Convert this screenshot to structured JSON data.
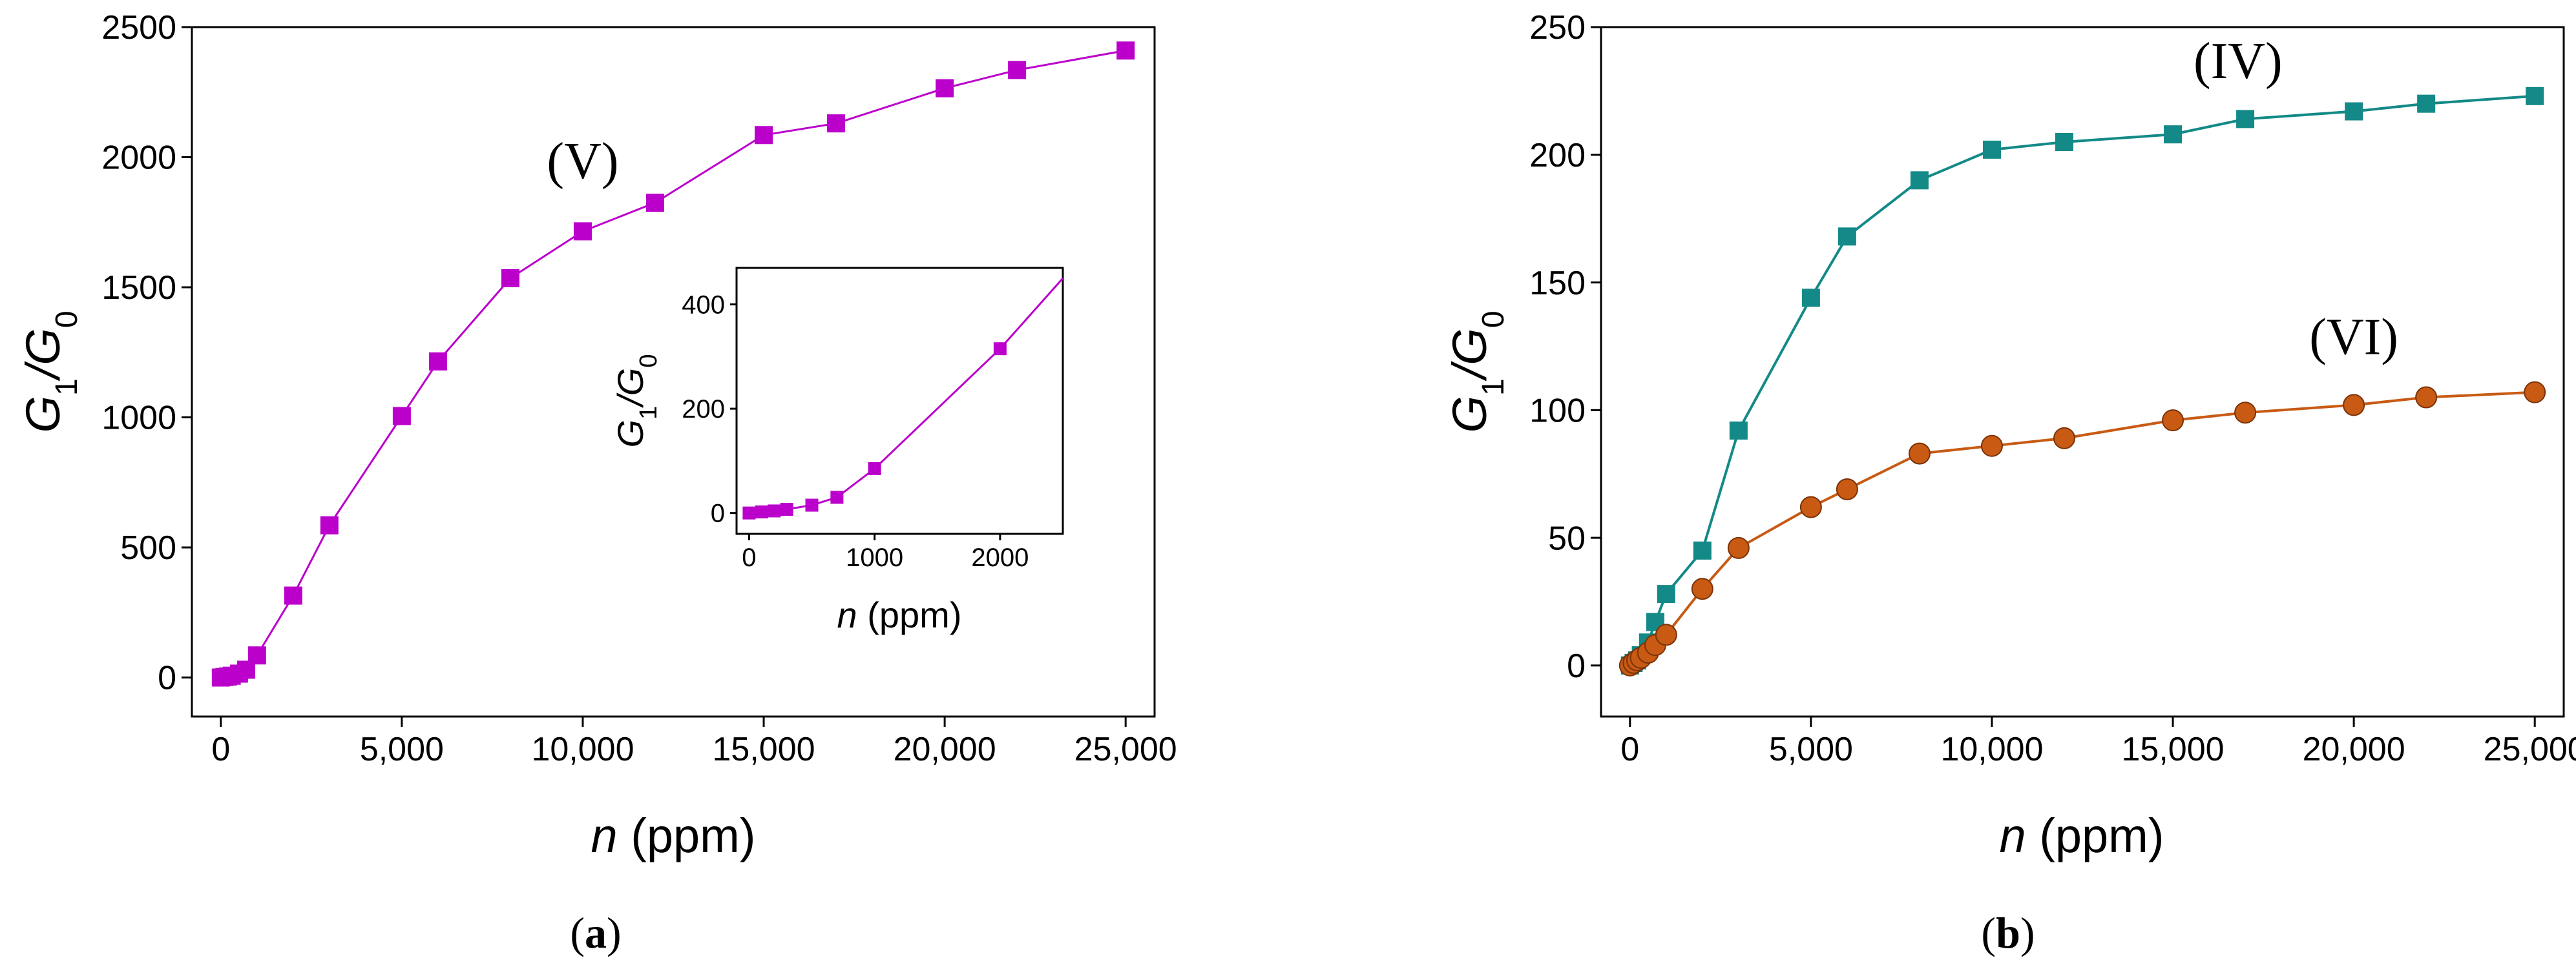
{
  "chart_data": [
    {
      "panel": "a",
      "type": "line",
      "caption_open": "(",
      "caption_letter": "a",
      "caption_close": ")",
      "xlabel_var": "n",
      "xlabel_unit": " (ppm)",
      "ylabel_main": "G",
      "ylabel_sub1": "1",
      "ylabel_slash": "/G",
      "ylabel_sub0": "0",
      "xlim": [
        -800,
        25800
      ],
      "ylim": [
        -150,
        2500
      ],
      "xticks": [
        0,
        5000,
        10000,
        15000,
        20000,
        25000
      ],
      "xtick_labels": [
        "0",
        "5,000",
        "10,000",
        "15,000",
        "20,000",
        "25,000"
      ],
      "yticks": [
        0,
        500,
        1000,
        1500,
        2000,
        2500
      ],
      "ytick_labels": [
        "0",
        "500",
        "1000",
        "1500",
        "2000",
        "2500"
      ],
      "series": [
        {
          "name": "(V)",
          "color": "#bb00cc",
          "marker": "square",
          "x": [
            0,
            100,
            200,
            300,
            500,
            700,
            1000,
            2000,
            3000,
            5000,
            6000,
            8000,
            10000,
            12000,
            15000,
            17000,
            20000,
            22000,
            25000
          ],
          "y": [
            0,
            2,
            4,
            7,
            15,
            30,
            85,
            315,
            585,
            1005,
            1215,
            1535,
            1715,
            1825,
            2085,
            2130,
            2265,
            2335,
            2410
          ]
        }
      ],
      "annotations": [
        {
          "text": "(V)",
          "x": 10000,
          "y": 1920
        }
      ],
      "inset": {
        "xlabel_var": "n",
        "xlabel_unit": " (ppm)",
        "ylabel_main": "G",
        "ylabel_sub1": "1",
        "ylabel_slash": "/G",
        "ylabel_sub0": "0",
        "xlim": [
          -100,
          2500
        ],
        "ylim": [
          -40,
          470
        ],
        "xticks": [
          0,
          1000,
          2000
        ],
        "xtick_labels": [
          "0",
          "1000",
          "2000"
        ],
        "yticks": [
          0,
          200,
          400
        ],
        "ytick_labels": [
          "0",
          "200",
          "400"
        ],
        "x": [
          0,
          100,
          200,
          300,
          500,
          700,
          1000,
          2000,
          2500
        ],
        "y": [
          0,
          2,
          4,
          7,
          15,
          30,
          85,
          315,
          450
        ],
        "markers_count": 8
      }
    },
    {
      "panel": "b",
      "type": "line",
      "caption_open": "(",
      "caption_letter": "b",
      "caption_close": ")",
      "xlabel_var": "n",
      "xlabel_unit": " (ppm)",
      "ylabel_main": "G",
      "ylabel_sub1": "1",
      "ylabel_slash": "/G",
      "ylabel_sub0": "0",
      "xlim": [
        -800,
        25800
      ],
      "ylim": [
        -20,
        250
      ],
      "xticks": [
        0,
        5000,
        10000,
        15000,
        20000,
        25000
      ],
      "xtick_labels": [
        "0",
        "5,000",
        "10,000",
        "15,000",
        "20,000",
        "25,000"
      ],
      "yticks": [
        0,
        50,
        100,
        150,
        200,
        250
      ],
      "ytick_labels": [
        "0",
        "50",
        "100",
        "150",
        "200",
        "250"
      ],
      "series": [
        {
          "name": "(IV)",
          "color": "#138a87",
          "marker": "square",
          "x": [
            0,
            100,
            200,
            300,
            500,
            700,
            1000,
            2000,
            3000,
            5000,
            6000,
            8000,
            10000,
            12000,
            15000,
            17000,
            20000,
            22000,
            25000
          ],
          "y": [
            0,
            1,
            2,
            4,
            9,
            17,
            28,
            45,
            92,
            144,
            168,
            190,
            202,
            205,
            208,
            214,
            217,
            220,
            223
          ]
        },
        {
          "name": "(VI)",
          "color": "#c85a14",
          "marker": "circle",
          "x": [
            0,
            100,
            200,
            300,
            500,
            700,
            1000,
            2000,
            3000,
            5000,
            6000,
            8000,
            10000,
            12000,
            15000,
            17000,
            20000,
            22000,
            25000
          ],
          "y": [
            0,
            1,
            2,
            3,
            5,
            8,
            12,
            30,
            46,
            62,
            69,
            83,
            86,
            89,
            96,
            99,
            102,
            105,
            107
          ]
        }
      ],
      "annotations": [
        {
          "text": "(IV)",
          "x": 16800,
          "y": 230
        },
        {
          "text": "(VI)",
          "x": 20000,
          "y": 122
        }
      ]
    }
  ]
}
